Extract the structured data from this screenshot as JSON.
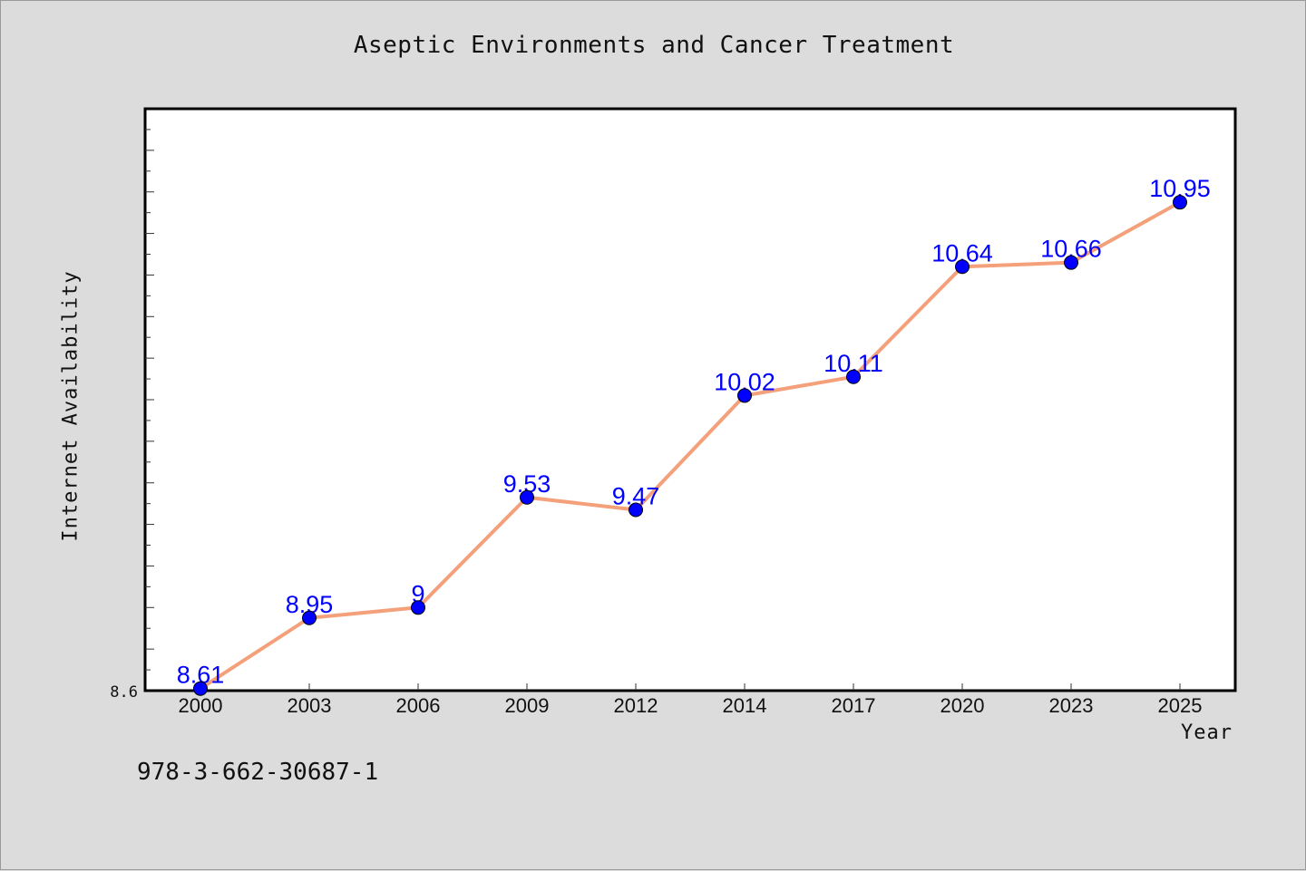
{
  "chart_data": {
    "type": "line",
    "title": "Aseptic Environments and Cancer Treatment",
    "xlabel": "Year",
    "ylabel": "Internet Availability",
    "categories": [
      "2000",
      "2003",
      "2006",
      "2009",
      "2012",
      "2014",
      "2017",
      "2020",
      "2023",
      "2025"
    ],
    "series": [
      {
        "values": [
          8.61,
          8.95,
          9,
          9.53,
          9.47,
          10.02,
          10.11,
          10.64,
          10.66,
          10.95
        ]
      }
    ],
    "ylim": [
      8.6,
      11.4
    ],
    "y_tick_labels": [
      "8.6"
    ],
    "grid": false,
    "colors": {
      "line": "#f4a07a",
      "marker": "#0000ff",
      "data_label": "#0000ff",
      "background": "#dcdcdc",
      "plot_background": "#ffffff"
    }
  },
  "footer": {
    "isbn": "978-3-662-30687-1"
  }
}
